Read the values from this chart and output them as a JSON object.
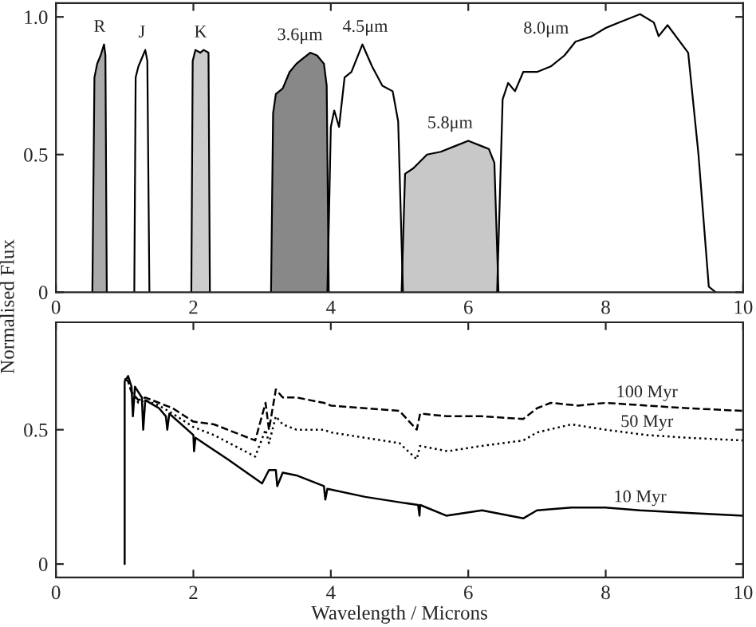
{
  "chart_data": [
    {
      "type": "area",
      "ylabel": "Normalised Flux",
      "xlim": [
        0,
        10
      ],
      "ylim": [
        0,
        1.05
      ],
      "xticks": [
        0,
        2,
        4,
        6,
        8,
        10
      ],
      "yticks": [
        0,
        0.5,
        {
          "value": 1.0,
          "label": "1.0"
        }
      ],
      "grid": false,
      "legend": false,
      "series": [
        {
          "name": "R",
          "color": "#aaaaaa",
          "x": [
            0.53,
            0.56,
            0.6,
            0.65,
            0.7,
            0.72,
            0.74
          ],
          "values": [
            0,
            0.78,
            0.83,
            0.86,
            0.9,
            0.86,
            0
          ]
        },
        {
          "name": "J",
          "color": "#ffffff",
          "x": [
            1.14,
            1.16,
            1.2,
            1.25,
            1.3,
            1.33,
            1.36
          ],
          "values": [
            0,
            0.78,
            0.82,
            0.85,
            0.88,
            0.84,
            0
          ]
        },
        {
          "name": "K",
          "color": "#cccccc",
          "x": [
            1.97,
            1.99,
            2.03,
            2.1,
            2.15,
            2.22,
            2.24
          ],
          "values": [
            0,
            0.84,
            0.88,
            0.87,
            0.88,
            0.87,
            0
          ]
        },
        {
          "name": "3.6μm",
          "color": "#888888",
          "x": [
            3.13,
            3.16,
            3.2,
            3.3,
            3.4,
            3.5,
            3.6,
            3.7,
            3.8,
            3.9,
            3.94,
            3.97
          ],
          "values": [
            0,
            0.65,
            0.72,
            0.74,
            0.8,
            0.83,
            0.85,
            0.87,
            0.86,
            0.83,
            0.75,
            0
          ]
        },
        {
          "name": "4.5μm",
          "color": "#ffffff",
          "x": [
            3.95,
            4.0,
            4.05,
            4.12,
            4.2,
            4.3,
            4.46,
            4.6,
            4.75,
            4.9,
            4.98,
            5.05
          ],
          "values": [
            0,
            0.6,
            0.66,
            0.6,
            0.78,
            0.8,
            0.9,
            0.82,
            0.75,
            0.73,
            0.62,
            0
          ]
        },
        {
          "name": "5.8μm",
          "color": "#c8c8c8",
          "x": [
            5.03,
            5.08,
            5.2,
            5.4,
            5.6,
            5.8,
            6.0,
            6.2,
            6.3,
            6.38,
            6.44
          ],
          "values": [
            0,
            0.43,
            0.45,
            0.5,
            0.51,
            0.53,
            0.55,
            0.53,
            0.52,
            0.47,
            0
          ]
        },
        {
          "name": "8.0μm",
          "color": "#ffffff",
          "x": [
            6.42,
            6.5,
            6.58,
            6.68,
            6.8,
            7.0,
            7.2,
            7.4,
            7.56,
            7.8,
            8.0,
            8.2,
            8.5,
            8.7,
            8.77,
            8.9,
            9.2,
            9.35,
            9.5,
            9.6
          ],
          "values": [
            0,
            0.7,
            0.76,
            0.73,
            0.8,
            0.8,
            0.82,
            0.86,
            0.91,
            0.93,
            0.96,
            0.98,
            1.01,
            0.98,
            0.93,
            0.97,
            0.87,
            0.5,
            0.02,
            0
          ]
        }
      ]
    },
    {
      "type": "line",
      "xlabel": "Wavelength / Microns",
      "xlim": [
        0,
        10
      ],
      "ylim": [
        -0.05,
        0.9
      ],
      "xticks": [
        0,
        2,
        4,
        6,
        8,
        10
      ],
      "yticks": [
        0,
        0.5
      ],
      "grid": false,
      "legend": false,
      "marker": "none",
      "series": [
        {
          "name": "100 Myr",
          "color": "#000000",
          "line_style": "dashed",
          "x": [
            1.0,
            1.05,
            1.1,
            1.2,
            1.3,
            1.5,
            1.7,
            2.0,
            2.3,
            2.6,
            2.9,
            3.05,
            3.1,
            3.2,
            3.3,
            3.5,
            3.9,
            4.0,
            4.5,
            5.0,
            5.25,
            5.3,
            5.7,
            6.2,
            6.8,
            7.0,
            7.2,
            7.6,
            8.0,
            8.6,
            9.2,
            10.0
          ],
          "values": [
            0.69,
            0.68,
            0.64,
            0.61,
            0.62,
            0.6,
            0.58,
            0.53,
            0.52,
            0.49,
            0.46,
            0.6,
            0.5,
            0.65,
            0.62,
            0.62,
            0.6,
            0.59,
            0.58,
            0.57,
            0.5,
            0.56,
            0.55,
            0.55,
            0.54,
            0.58,
            0.6,
            0.59,
            0.6,
            0.59,
            0.58,
            0.57
          ]
        },
        {
          "name": "50 Myr",
          "color": "#000000",
          "line_style": "dotted",
          "x": [
            1.0,
            1.05,
            1.1,
            1.2,
            1.3,
            1.5,
            1.7,
            2.0,
            2.3,
            2.6,
            2.9,
            3.05,
            3.1,
            3.2,
            3.3,
            3.5,
            3.9,
            4.0,
            4.5,
            5.0,
            5.25,
            5.3,
            5.7,
            6.2,
            6.8,
            7.0,
            7.5,
            8.0,
            8.6,
            9.2,
            10.0
          ],
          "values": [
            0.69,
            0.68,
            0.64,
            0.6,
            0.61,
            0.59,
            0.56,
            0.51,
            0.48,
            0.44,
            0.4,
            0.5,
            0.45,
            0.55,
            0.52,
            0.5,
            0.5,
            0.49,
            0.47,
            0.45,
            0.39,
            0.44,
            0.42,
            0.44,
            0.46,
            0.49,
            0.52,
            0.5,
            0.48,
            0.47,
            0.46
          ]
        },
        {
          "name": "10 Myr",
          "color": "#000000",
          "line_style": "solid",
          "x": [
            1.0,
            1.0,
            1.05,
            1.1,
            1.12,
            1.15,
            1.25,
            1.27,
            1.3,
            1.5,
            1.6,
            1.62,
            1.65,
            2.0,
            2.01,
            2.03,
            2.5,
            3.0,
            3.1,
            3.2,
            3.22,
            3.3,
            3.5,
            3.9,
            3.92,
            3.95,
            4.5,
            5.0,
            5.27,
            5.29,
            5.3,
            5.68,
            6.2,
            6.8,
            7.0,
            7.5,
            8.0,
            8.5,
            9.2,
            10.0
          ],
          "values": [
            0,
            0.68,
            0.7,
            0.66,
            0.55,
            0.66,
            0.62,
            0.5,
            0.61,
            0.58,
            0.55,
            0.5,
            0.56,
            0.48,
            0.42,
            0.47,
            0.39,
            0.3,
            0.35,
            0.35,
            0.29,
            0.34,
            0.33,
            0.29,
            0.24,
            0.28,
            0.25,
            0.23,
            0.22,
            0.18,
            0.22,
            0.18,
            0.2,
            0.17,
            0.2,
            0.21,
            0.21,
            0.2,
            0.19,
            0.18
          ]
        }
      ]
    }
  ]
}
